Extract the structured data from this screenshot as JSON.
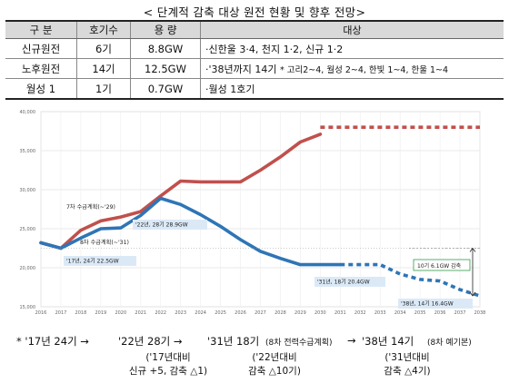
{
  "title": "< 단계적 감축 대상 원전 현황 및 향후 전망>",
  "table": {
    "headers": [
      "구 분",
      "호기수",
      "용 량",
      "대상"
    ],
    "rows": [
      {
        "cat": "신규원전",
        "units": "6기",
        "cap": "8.8GW",
        "target": "·신한울 3·4, 천지 1·2, 신규 1·2",
        "target_small": ""
      },
      {
        "cat": "노후원전",
        "units": "14기",
        "cap": "12.5GW",
        "target": "·'38년까지 14기",
        "target_small": "* 고리2~4, 월성 2~4, 한빛 1~4, 한울 1~4"
      },
      {
        "cat": "월성 1",
        "units": "1기",
        "cap": "0.7GW",
        "target": "·월성 1호기",
        "target_small": ""
      }
    ]
  },
  "chart_data": {
    "type": "line",
    "x": [
      "2016",
      "2017",
      "2018",
      "2019",
      "2020",
      "2021",
      "2022",
      "2023",
      "2024",
      "2025",
      "2026",
      "2027",
      "2028",
      "2029",
      "2030",
      "2031",
      "2032",
      "2033",
      "2034",
      "2035",
      "2036",
      "2037",
      "2038"
    ],
    "y_ticks": [
      "15,000",
      "20,000",
      "25,000",
      "30,000",
      "35,000",
      "40,000"
    ],
    "ylim": [
      15000,
      40000
    ],
    "series": [
      {
        "name": "7차 수급계획(~'29)",
        "color": "#c0504d",
        "values": [
          23200,
          22500,
          24800,
          26000,
          26500,
          27200,
          29200,
          31100,
          31000,
          31000,
          31000,
          32500,
          34200,
          36100,
          37100,
          null,
          null,
          null,
          null,
          null,
          null,
          null,
          null
        ],
        "dotted": [
          null,
          null,
          null,
          null,
          null,
          null,
          null,
          null,
          null,
          null,
          null,
          null,
          null,
          null,
          38000,
          38000,
          38000,
          38000,
          38000,
          38000,
          38000,
          38000,
          38000
        ]
      },
      {
        "name": "8차 수급계획(~'31)",
        "color": "#2e75b6",
        "values": [
          23200,
          22500,
          23800,
          25000,
          25100,
          26700,
          28900,
          28100,
          26800,
          25300,
          23600,
          22100,
          21200,
          20400,
          20400,
          20400,
          null,
          null,
          null,
          null,
          null,
          null,
          null
        ],
        "dotted": [
          null,
          null,
          null,
          null,
          null,
          null,
          null,
          null,
          null,
          null,
          null,
          null,
          null,
          null,
          null,
          20400,
          20400,
          20400,
          19200,
          18500,
          18300,
          17200,
          16400
        ]
      }
    ],
    "annotations": [
      {
        "text": "7차 수급계획(~'29)"
      },
      {
        "text": "8차 수급계획(~'31)"
      },
      {
        "text": "'17년, 24기 22.5GW"
      },
      {
        "text": "'22년, 28기 28.9GW"
      },
      {
        "text": "'31년, 18기 20.4GW"
      },
      {
        "text": "'38년, 14기 16.4GW"
      },
      {
        "text": "10기 6.1GW 감축"
      }
    ]
  },
  "bottom": {
    "steps": [
      "* '17년 24기 →",
      "'22년 28기 →",
      "'31년 18기",
      "(8차 전력수급계획)",
      "→",
      "'38년 14기",
      "(8차 예기본)"
    ],
    "notes": [
      {
        "line1": "('17년대비",
        "line2": "신규 +5, 감축 △1)"
      },
      {
        "line1": "('22년대비",
        "line2": "감축 △10기)"
      },
      {
        "line1": "('31년대비",
        "line2": "감축 △4기)"
      }
    ]
  }
}
